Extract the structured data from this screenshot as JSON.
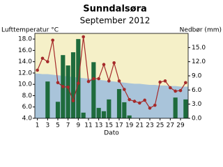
{
  "chart_data": {
    "type": "combo",
    "title": "Sunndalsøra",
    "subtitle": "September 2012",
    "ylabel": "Lufttemperatur °C",
    "y2label": "Nedbør (mm)",
    "xlabel": "Dato",
    "x": [
      1,
      2,
      3,
      4,
      5,
      6,
      7,
      8,
      9,
      10,
      11,
      12,
      13,
      14,
      15,
      16,
      17,
      18,
      19,
      20,
      21,
      22,
      23,
      24,
      25,
      26,
      27,
      28,
      29,
      30
    ],
    "xlim": [
      0.5,
      30.5
    ],
    "xticks": [
      1,
      3,
      5,
      7,
      9,
      11,
      13,
      15,
      17,
      19,
      21,
      23,
      25,
      27,
      29
    ],
    "ylim": [
      4,
      19
    ],
    "yticks": [
      {
        "value": 4,
        "label": "4.0"
      },
      {
        "value": 6,
        "label": "6.0"
      },
      {
        "value": 8,
        "label": "8.0"
      },
      {
        "value": 10,
        "label": "10.0"
      },
      {
        "value": 12,
        "label": "12.0"
      },
      {
        "value": 14,
        "label": "14.0"
      },
      {
        "value": 16,
        "label": "16.0"
      },
      {
        "value": 18,
        "label": "18.0"
      }
    ],
    "y2lim": [
      0,
      18
    ],
    "y2ticks": [
      {
        "value": 0,
        "label": "0.0"
      },
      {
        "value": 3,
        "label": "3.0"
      },
      {
        "value": 6,
        "label": "6.0"
      },
      {
        "value": 9,
        "label": "9.0"
      },
      {
        "value": 12,
        "label": "12.0"
      },
      {
        "value": 15,
        "label": "15.0"
      }
    ],
    "background": "#f5f0c8",
    "series": [
      {
        "type": "area",
        "color": "#a9c4da",
        "values": [
          11.9,
          11.8,
          11.8,
          11.7,
          11.6,
          11.5,
          11.4,
          11.3,
          11.2,
          11.1,
          11.0,
          10.9,
          10.8,
          10.7,
          10.6,
          10.5,
          10.4,
          10.3,
          10.2,
          10.1,
          10.1,
          10.0,
          9.9,
          9.9,
          9.8,
          9.8,
          9.7,
          9.7,
          9.6,
          9.6
        ]
      },
      {
        "type": "bar",
        "axis": "y2",
        "color": "#1e6b3c",
        "values": [
          0,
          0,
          7.8,
          0,
          3.5,
          13.4,
          11.2,
          14.0,
          16.8,
          1.2,
          0,
          11.9,
          2.2,
          1.5,
          4.0,
          0,
          6.2,
          3.4,
          0.6,
          0,
          0,
          0,
          0,
          0,
          0,
          0,
          0,
          4.4,
          0,
          4.0
        ]
      },
      {
        "type": "line",
        "color": "#a52a2a",
        "values": [
          12.5,
          14.6,
          14.0,
          17.8,
          10.3,
          9.6,
          9.5,
          7.1,
          10.2,
          18.4,
          10.5,
          11.0,
          11.0,
          13.5,
          10.6,
          13.8,
          10.6,
          9.1,
          7.3,
          7.0,
          6.7,
          7.2,
          5.8,
          6.3,
          10.4,
          10.6,
          9.4,
          8.8,
          8.9,
          10.3
        ]
      }
    ]
  }
}
